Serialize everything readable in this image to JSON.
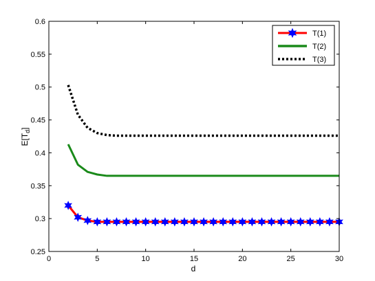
{
  "chart_data": {
    "type": "line",
    "xlabel": "d",
    "ylabel": "E[T",
    "ylabel_sub": "d",
    "ylabel_close": "]",
    "xlim": [
      0,
      30
    ],
    "ylim": [
      0.25,
      0.6
    ],
    "xticks": [
      0,
      5,
      10,
      15,
      20,
      25,
      30
    ],
    "yticks": [
      0.25,
      0.3,
      0.35,
      0.4,
      0.45,
      0.5,
      0.55,
      0.6
    ],
    "ytick_labels": [
      "0.25",
      "0.3",
      "0.35",
      "0.4",
      "0.45",
      "0.5",
      "0.55",
      "0.6"
    ],
    "grid": false,
    "legend_position": "top-right",
    "series": [
      {
        "name": "T(1)",
        "color": "#ff0000",
        "marker": "blue-star",
        "marker_color": "#0000ff",
        "style": "solid",
        "x": [
          2,
          3,
          4,
          5,
          6,
          7,
          8,
          9,
          10,
          11,
          12,
          13,
          14,
          15,
          16,
          17,
          18,
          19,
          20,
          21,
          22,
          23,
          24,
          25,
          26,
          27,
          28,
          29,
          30
        ],
        "y": [
          0.32,
          0.302,
          0.297,
          0.295,
          0.295,
          0.295,
          0.295,
          0.295,
          0.295,
          0.295,
          0.295,
          0.295,
          0.295,
          0.295,
          0.295,
          0.295,
          0.295,
          0.295,
          0.295,
          0.295,
          0.295,
          0.295,
          0.295,
          0.295,
          0.295,
          0.295,
          0.295,
          0.295,
          0.295
        ]
      },
      {
        "name": "T(2)",
        "color": "#1a8a1a",
        "marker": "none",
        "style": "solid",
        "x": [
          2,
          3,
          4,
          5,
          6,
          7,
          8,
          9,
          10,
          12,
          15,
          20,
          25,
          30
        ],
        "y": [
          0.413,
          0.382,
          0.371,
          0.367,
          0.365,
          0.365,
          0.365,
          0.365,
          0.365,
          0.365,
          0.365,
          0.365,
          0.365,
          0.365
        ]
      },
      {
        "name": "T(3)",
        "color": "#000000",
        "marker": "none",
        "style": "dotted",
        "x": [
          2,
          3,
          4,
          5,
          6,
          7,
          8,
          9,
          10,
          12,
          15,
          20,
          25,
          30
        ],
        "y": [
          0.503,
          0.458,
          0.438,
          0.43,
          0.427,
          0.426,
          0.426,
          0.426,
          0.426,
          0.426,
          0.426,
          0.426,
          0.426,
          0.426
        ]
      }
    ]
  }
}
